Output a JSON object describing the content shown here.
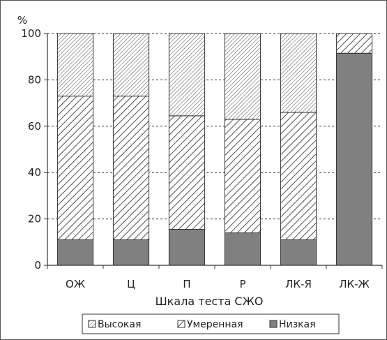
{
  "chart_data": {
    "type": "bar",
    "stacked": true,
    "unit_label": "%",
    "xlabel": "Шкала теста СЖО",
    "ylabel": "",
    "ylim": [
      0,
      100
    ],
    "yticks": [
      0,
      20,
      40,
      60,
      80,
      100
    ],
    "grid": "horizontal-dashed",
    "legend_position": "bottom",
    "categories": [
      "ОЖ",
      "Ц",
      "П",
      "Р",
      "ЛК-Я",
      "ЛК-Ж"
    ],
    "series": [
      {
        "name": "Низкая",
        "values": [
          11,
          11,
          15.5,
          14,
          11,
          91.5
        ]
      },
      {
        "name": "Умеренная",
        "values": [
          62,
          62,
          49,
          49,
          55,
          8.5
        ]
      },
      {
        "name": "Высокая",
        "values": [
          27,
          27,
          35.5,
          37,
          34,
          0
        ]
      }
    ],
    "legend_order": [
      "Высокая",
      "Умеренная",
      "Низкая"
    ],
    "colors": {
      "Низкая": "#808080",
      "Умеренная": "#ffffff",
      "Высокая": "#ffffff",
      "axis": "#333333",
      "frame": "#555555"
    }
  }
}
